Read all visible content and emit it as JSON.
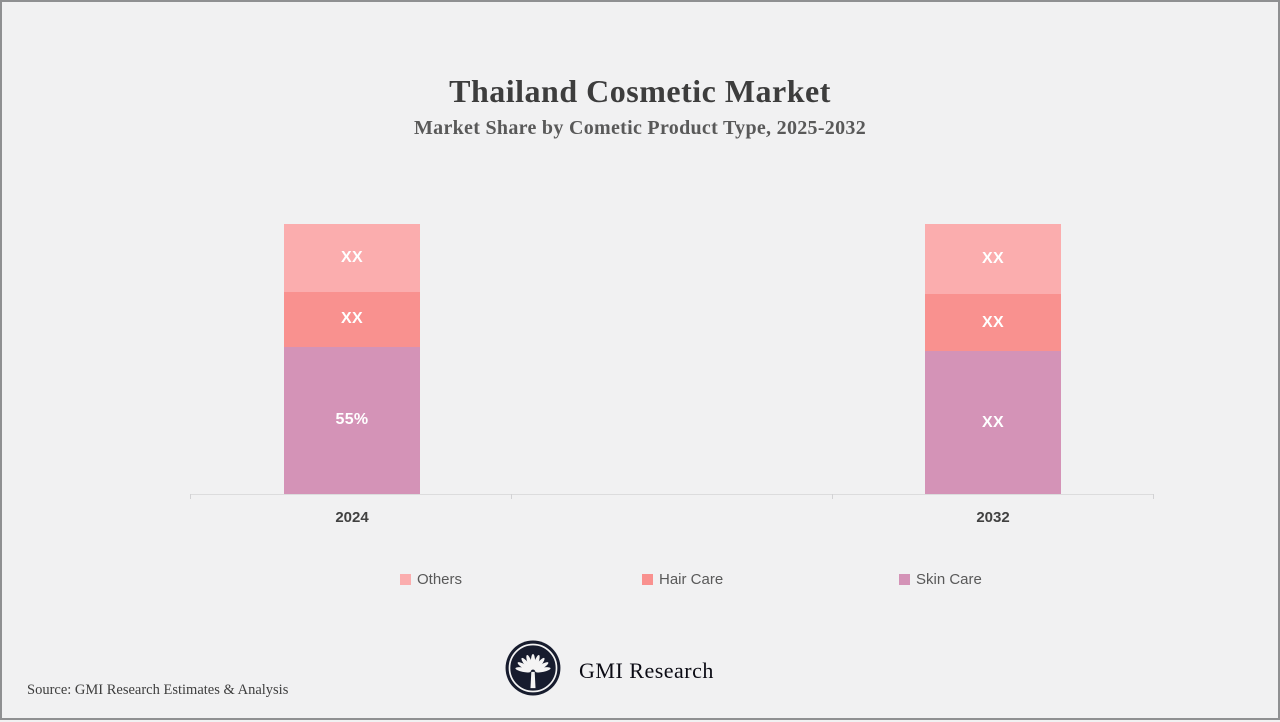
{
  "canvas": {
    "background_color": "#f1f1f2",
    "border_color": "#8f9092"
  },
  "chart_data": {
    "type": "bar",
    "subtype": "stacked",
    "title": "Thailand Cosmetic Market",
    "subtitle": "Market Share by Cometic Product Type, 2025-2032",
    "categories": [
      "2024",
      "2032"
    ],
    "series": [
      {
        "name": "Others",
        "color": "#fbadae",
        "labels": [
          "XX",
          "XX"
        ],
        "heights_pct": [
          25.3,
          26.0
        ]
      },
      {
        "name": "Hair Care",
        "color": "#f9918f",
        "labels": [
          "XX",
          "XX"
        ],
        "heights_pct": [
          20.1,
          21.2
        ]
      },
      {
        "name": "Skin Care",
        "color": "#d493b7",
        "labels": [
          "55%",
          "XX"
        ],
        "heights_pct": [
          54.6,
          52.8
        ]
      }
    ],
    "legend": [
      "Others",
      "Hair Care",
      "Skin Care"
    ],
    "legend_position": "bottom",
    "grid": false,
    "y_axis": "hidden",
    "value_label_color": "#ffffff"
  },
  "footer": {
    "source": "Source: GMI Research Estimates & Analysis",
    "brand": "GMI Research",
    "logo": "gmi-palm-emblem",
    "logo_colors": {
      "circle": "#171c2e",
      "emblem": "#f4f4f4"
    }
  }
}
